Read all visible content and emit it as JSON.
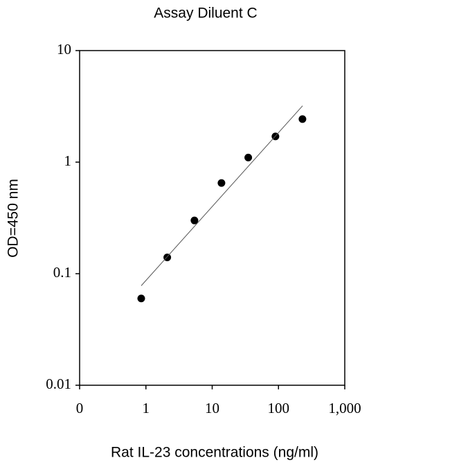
{
  "chart_data": {
    "type": "scatter",
    "title": "Assay Diluent C",
    "xlabel": "Rat IL-23 concentrations (ng/ml)",
    "ylabel": "OD=450 nm",
    "xscale": "log",
    "yscale": "log",
    "xlim": [
      0.1,
      1000
    ],
    "ylim": [
      0.01,
      10
    ],
    "xticks": [
      {
        "value": 0.1,
        "label": "0"
      },
      1,
      10,
      100,
      {
        "value": 1000,
        "label": "1,000"
      }
    ],
    "yticks": [
      0.01,
      0.1,
      1,
      10
    ],
    "series": [
      {
        "mode": "markers",
        "color": "#000000",
        "x": [
          0.85,
          2.1,
          5.4,
          13.8,
          35,
          90,
          230
        ],
        "values": [
          0.06,
          0.14,
          0.3,
          0.65,
          1.1,
          1.7,
          2.43
        ]
      },
      {
        "mode": "line",
        "color": "#555555",
        "x": [
          0.85,
          231
        ],
        "values": [
          0.078,
          3.2
        ]
      }
    ]
  }
}
